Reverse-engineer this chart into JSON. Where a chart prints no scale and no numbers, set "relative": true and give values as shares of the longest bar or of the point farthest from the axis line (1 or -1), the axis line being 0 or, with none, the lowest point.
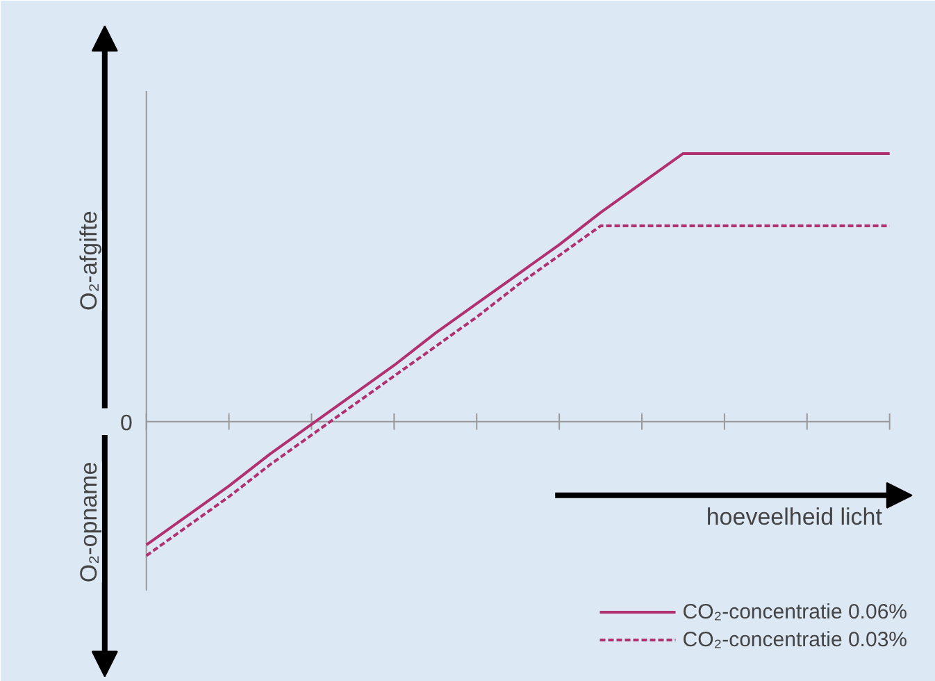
{
  "chart_data": {
    "type": "line",
    "relative": true,
    "xlabel": "hoeveelheid licht",
    "ylabel": "O₂-afgifte",
    "annotations": [
      "0",
      "O₂-opname"
    ],
    "categories": [
      null,
      null,
      null,
      null,
      null,
      null,
      null,
      null,
      null,
      null,
      null,
      null,
      null,
      null,
      null,
      null,
      null,
      null,
      null
    ],
    "legend": "bottom right",
    "series": [
      {
        "name": "CO₂-concentratie 0.06%",
        "color": "#b03070",
        "line_style": "solid",
        "values": [
          -0.46,
          -0.35,
          -0.24,
          -0.12,
          -0.01,
          0.1,
          0.21,
          0.33,
          0.44,
          0.55,
          0.66,
          0.78,
          0.89,
          1.0,
          1.0,
          1.0,
          1.0,
          1.0,
          1.0
        ]
      },
      {
        "name": "CO₂-concentratie 0.03%",
        "color": "#b03070",
        "line_style": "dashed",
        "values": [
          -0.5,
          -0.39,
          -0.28,
          -0.16,
          -0.05,
          0.06,
          0.17,
          0.28,
          0.39,
          0.51,
          0.62,
          0.73,
          0.73,
          0.73,
          0.73,
          0.73,
          0.73,
          0.73,
          0.73
        ]
      }
    ]
  }
}
